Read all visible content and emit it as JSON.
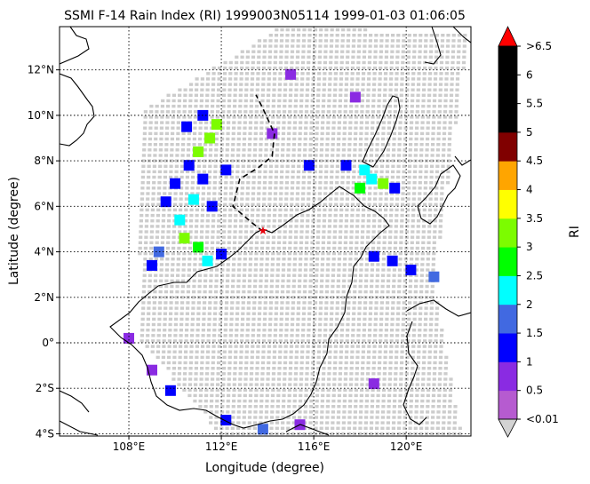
{
  "chart_data": {
    "type": "heatmap",
    "title": "SSMI F-14 Rain Index (RI) 1999003N05114 1999-01-03 01:06:05",
    "xlabel": "Longitude (degree)",
    "ylabel": "Latitude (degree)",
    "xlim": [
      105.0,
      122.8
    ],
    "ylim": [
      -4.1,
      13.9
    ],
    "x_ticks": [
      {
        "value": 108,
        "label": "108°E"
      },
      {
        "value": 112,
        "label": "112°E"
      },
      {
        "value": 116,
        "label": "116°E"
      },
      {
        "value": 120,
        "label": "120°E"
      }
    ],
    "y_ticks": [
      {
        "value": 12,
        "label": "12°N"
      },
      {
        "value": 10,
        "label": "10°N"
      },
      {
        "value": 8,
        "label": "8°N"
      },
      {
        "value": 6,
        "label": "6°N"
      },
      {
        "value": 4,
        "label": "4°N"
      },
      {
        "value": 2,
        "label": "2°N"
      },
      {
        "value": 0,
        "label": "0°"
      },
      {
        "value": -2,
        "label": "2°S"
      },
      {
        "value": -4,
        "label": "4°S"
      }
    ],
    "grid": true,
    "storm_center": {
      "lon": 113.8,
      "lat": 4.9,
      "color": "#e8000b",
      "marker": "star"
    },
    "track": [
      [
        113.8,
        4.9
      ],
      [
        113.3,
        5.3
      ],
      [
        112.5,
        6.0
      ],
      [
        112.8,
        7.2
      ],
      [
        113.6,
        7.7
      ],
      [
        114.2,
        8.2
      ],
      [
        114.3,
        9.2
      ],
      [
        113.8,
        10.3
      ],
      [
        113.5,
        10.9
      ]
    ],
    "swath_color": "#cccccc",
    "colorbar": {
      "label": "RI",
      "tick_labels": [
        ">6.5",
        "6",
        "5.5",
        "5",
        "4.5",
        "4",
        "3.5",
        "3",
        "2.5",
        "2",
        "1.5",
        "1",
        "0.5",
        "<0.01"
      ],
      "levels": [
        0.01,
        0.5,
        1,
        1.5,
        2,
        2.5,
        3,
        3.5,
        4,
        4.5,
        5,
        5.5,
        6,
        6.5
      ],
      "colors": [
        "#b65bd0",
        "#8a2be2",
        "#0000ff",
        "#4169e1",
        "#00ffff",
        "#00ff00",
        "#7cfc00",
        "#ffff00",
        "#ffa500",
        "#800000",
        "#000000",
        "#000000",
        "#000000"
      ],
      "under_color": "#d3d3d3",
      "over_color": "#ff0000"
    },
    "rain_cells": [
      {
        "lon": 110.5,
        "lat": 9.5,
        "ri": 1.2
      },
      {
        "lon": 111.2,
        "lat": 10.0,
        "ri": 1.3
      },
      {
        "lon": 111.8,
        "lat": 9.6,
        "ri": 3.2
      },
      {
        "lon": 111.5,
        "lat": 9.0,
        "ri": 3.4
      },
      {
        "lon": 111.0,
        "lat": 8.4,
        "ri": 3.1
      },
      {
        "lon": 110.6,
        "lat": 7.8,
        "ri": 1.2
      },
      {
        "lon": 110.0,
        "lat": 7.0,
        "ri": 1.1
      },
      {
        "lon": 111.2,
        "lat": 7.2,
        "ri": 1.3
      },
      {
        "lon": 112.2,
        "lat": 7.6,
        "ri": 1.2
      },
      {
        "lon": 109.6,
        "lat": 6.2,
        "ri": 1.4
      },
      {
        "lon": 110.8,
        "lat": 6.3,
        "ri": 2.2
      },
      {
        "lon": 111.6,
        "lat": 6.0,
        "ri": 1.3
      },
      {
        "lon": 110.2,
        "lat": 5.4,
        "ri": 2.3
      },
      {
        "lon": 110.4,
        "lat": 4.6,
        "ri": 3.0
      },
      {
        "lon": 111.0,
        "lat": 4.2,
        "ri": 2.8
      },
      {
        "lon": 109.3,
        "lat": 4.0,
        "ri": 1.6
      },
      {
        "lon": 109.0,
        "lat": 3.4,
        "ri": 1.2
      },
      {
        "lon": 111.4,
        "lat": 3.6,
        "ri": 2.1
      },
      {
        "lon": 112.0,
        "lat": 3.9,
        "ri": 1.4
      },
      {
        "lon": 115.8,
        "lat": 7.8,
        "ri": 1.1
      },
      {
        "lon": 117.4,
        "lat": 7.8,
        "ri": 1.1
      },
      {
        "lon": 118.2,
        "lat": 7.6,
        "ri": 2.2
      },
      {
        "lon": 118.5,
        "lat": 7.2,
        "ri": 2.4
      },
      {
        "lon": 119.0,
        "lat": 7.0,
        "ri": 3.1
      },
      {
        "lon": 118.0,
        "lat": 6.8,
        "ri": 2.6
      },
      {
        "lon": 119.5,
        "lat": 6.8,
        "ri": 1.3
      },
      {
        "lon": 118.6,
        "lat": 3.8,
        "ri": 1.2
      },
      {
        "lon": 119.4,
        "lat": 3.6,
        "ri": 1.4
      },
      {
        "lon": 120.2,
        "lat": 3.2,
        "ri": 1.2
      },
      {
        "lon": 121.2,
        "lat": 2.9,
        "ri": 1.5
      },
      {
        "lon": 108.0,
        "lat": 0.2,
        "ri": 0.8
      },
      {
        "lon": 109.0,
        "lat": -1.2,
        "ri": 0.7
      },
      {
        "lon": 109.8,
        "lat": -2.1,
        "ri": 1.1
      },
      {
        "lon": 112.2,
        "lat": -3.4,
        "ri": 1.0
      },
      {
        "lon": 113.8,
        "lat": -3.8,
        "ri": 1.6
      },
      {
        "lon": 115.4,
        "lat": -3.6,
        "ri": 0.7
      },
      {
        "lon": 118.6,
        "lat": -1.8,
        "ri": 0.8
      },
      {
        "lon": 114.2,
        "lat": 9.2,
        "ri": 0.7
      },
      {
        "lon": 115.0,
        "lat": 11.8,
        "ri": 0.6
      },
      {
        "lon": 117.8,
        "lat": 10.8,
        "ri": 0.7
      }
    ]
  }
}
